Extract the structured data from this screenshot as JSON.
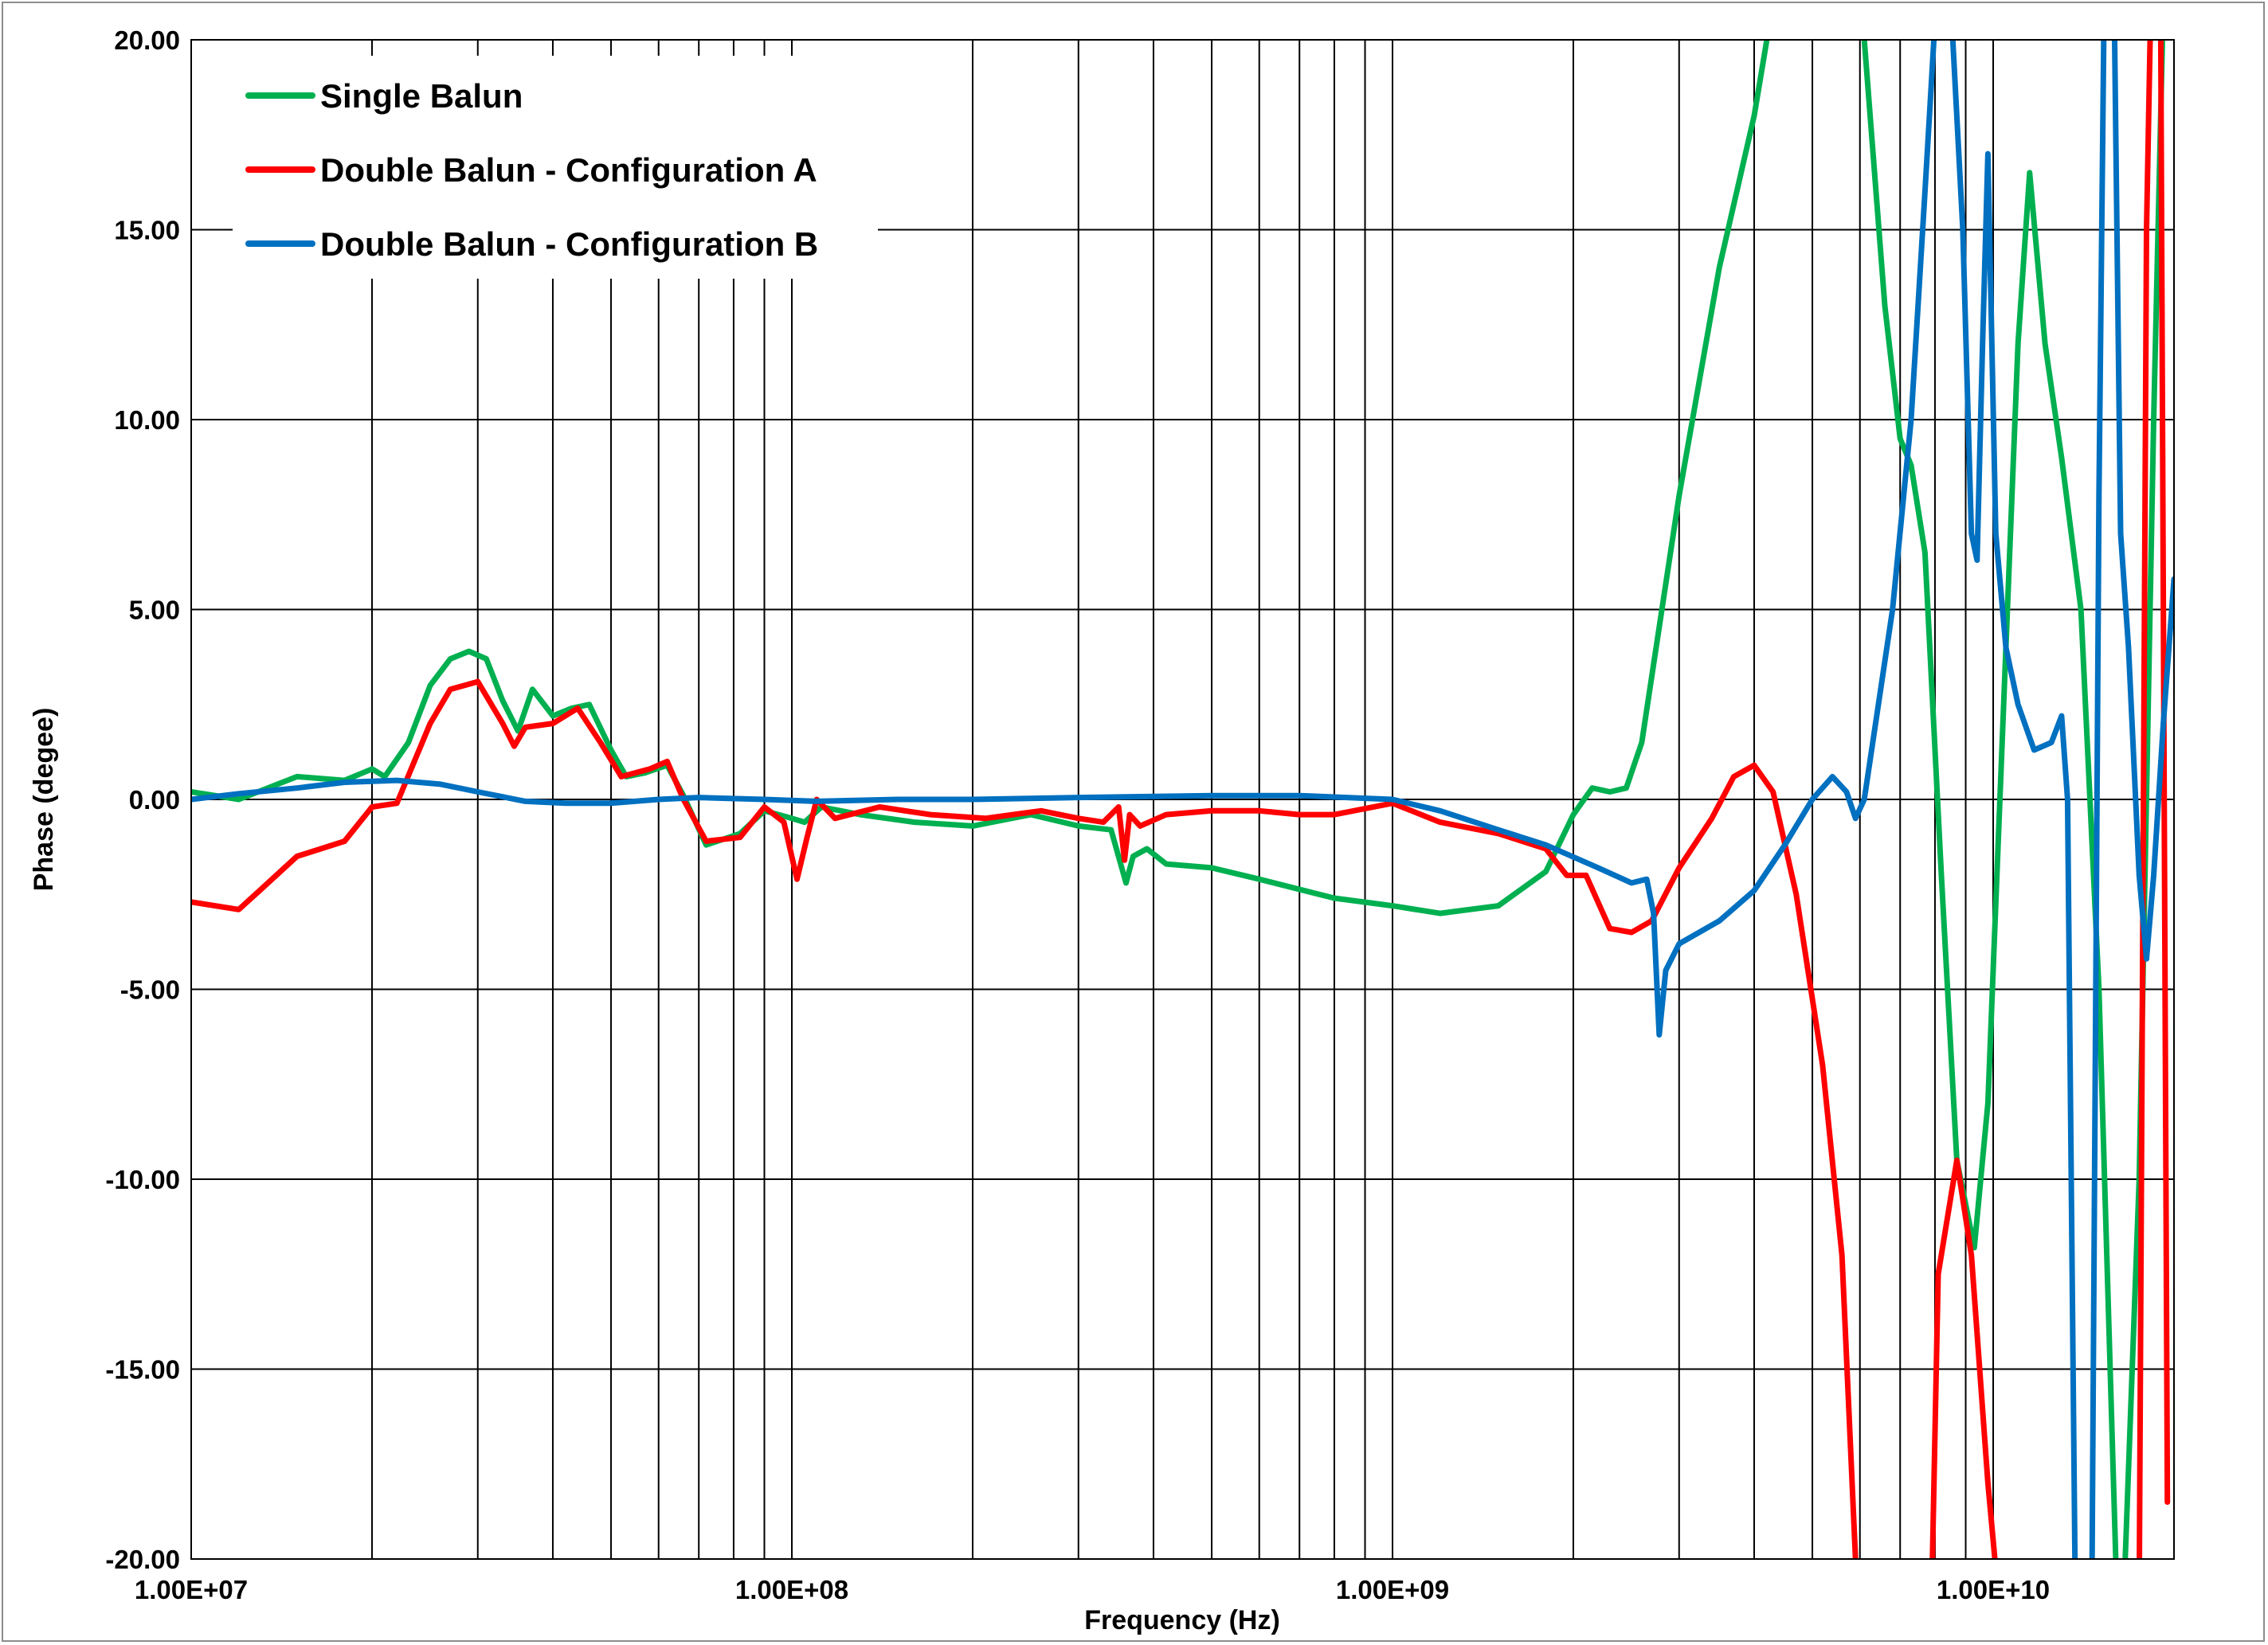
{
  "chart_data": {
    "type": "line",
    "title": "",
    "xlabel": "Frequency (Hz)",
    "ylabel": "Phase (degee)",
    "x_scale": "log",
    "xlim": [
      10000000,
      20000000000
    ],
    "ylim": [
      -20,
      20
    ],
    "x_tick_labels": [
      "1.00E+07",
      "1.00E+08",
      "1.00E+09",
      "1.00E+10"
    ],
    "x_tick_values": [
      10000000,
      100000000,
      1000000000,
      10000000000
    ],
    "y_tick_labels": [
      "20.00",
      "15.00",
      "10.00",
      "5.00",
      "0.00",
      "-5.00",
      "-10.00",
      "-15.00",
      "-20.00"
    ],
    "y_tick_values": [
      20,
      15,
      10,
      5,
      0,
      -5,
      -10,
      -15,
      -20
    ],
    "grid": true,
    "legend_position": "top-left",
    "series": [
      {
        "name": "Single Balun",
        "color": "#00b050",
        "points": [
          [
            10000000,
            0.2
          ],
          [
            12000000,
            0.0
          ],
          [
            15000000,
            0.6
          ],
          [
            18000000,
            0.5
          ],
          [
            20000000,
            0.8
          ],
          [
            21000000,
            0.6
          ],
          [
            23000000,
            1.5
          ],
          [
            25000000,
            3.0
          ],
          [
            27000000,
            3.7
          ],
          [
            29000000,
            3.9
          ],
          [
            31000000,
            3.7
          ],
          [
            33000000,
            2.6
          ],
          [
            35000000,
            1.8
          ],
          [
            37000000,
            2.9
          ],
          [
            40000000,
            2.2
          ],
          [
            43000000,
            2.4
          ],
          [
            46000000,
            2.5
          ],
          [
            50000000,
            1.3
          ],
          [
            53000000,
            0.6
          ],
          [
            57000000,
            0.7
          ],
          [
            62000000,
            0.9
          ],
          [
            66000000,
            0.1
          ],
          [
            72000000,
            -1.2
          ],
          [
            82000000,
            -0.9
          ],
          [
            90000000,
            -0.3
          ],
          [
            100000000,
            -0.5
          ],
          [
            105000000,
            -0.6
          ],
          [
            112000000,
            -0.2
          ],
          [
            130000000,
            -0.4
          ],
          [
            160000000,
            -0.6
          ],
          [
            200000000,
            -0.7
          ],
          [
            250000000,
            -0.4
          ],
          [
            300000000,
            -0.7
          ],
          [
            340000000,
            -0.8
          ],
          [
            360000000,
            -2.2
          ],
          [
            370000000,
            -1.5
          ],
          [
            390000000,
            -1.3
          ],
          [
            420000000,
            -1.7
          ],
          [
            500000000,
            -1.8
          ],
          [
            600000000,
            -2.1
          ],
          [
            800000000,
            -2.6
          ],
          [
            1000000000,
            -2.8
          ],
          [
            1200000000,
            -3.0
          ],
          [
            1500000000,
            -2.8
          ],
          [
            1800000000,
            -1.9
          ],
          [
            2000000000,
            -0.4
          ],
          [
            2150000000,
            0.3
          ],
          [
            2300000000,
            0.2
          ],
          [
            2450000000,
            0.3
          ],
          [
            2600000000,
            1.5
          ],
          [
            3000000000,
            8.0
          ],
          [
            3500000000,
            14.0
          ],
          [
            4000000000,
            18.0
          ],
          [
            4200000000,
            20.0
          ],
          [
            4300000000,
            21.5
          ],
          [
            6000000000,
            21.5
          ],
          [
            6100000000,
            20.0
          ],
          [
            6600000000,
            13.0
          ],
          [
            7000000000,
            9.5
          ],
          [
            7300000000,
            8.8
          ],
          [
            7700000000,
            6.5
          ],
          [
            8200000000,
            -2.0
          ],
          [
            8700000000,
            -9.5
          ],
          [
            9300000000,
            -11.8
          ],
          [
            9800000000,
            -8.0
          ],
          [
            10500000000,
            4.0
          ],
          [
            11000000000,
            12.0
          ],
          [
            11500000000,
            16.5
          ],
          [
            12200000000,
            12.0
          ],
          [
            13000000000,
            9.0
          ],
          [
            14000000000,
            5.0
          ],
          [
            15000000000,
            -5.0
          ],
          [
            16000000000,
            -20.0
          ],
          [
            16500000000,
            -21.0
          ],
          [
            17500000000,
            -10.0
          ],
          [
            18500000000,
            10.0
          ],
          [
            19200000000,
            21.0
          ]
        ]
      },
      {
        "name": "Double Balun - Configuration A",
        "color": "#ff0000",
        "points": [
          [
            10000000,
            -2.7
          ],
          [
            12000000,
            -2.9
          ],
          [
            13000000,
            -2.4
          ],
          [
            15000000,
            -1.5
          ],
          [
            18000000,
            -1.1
          ],
          [
            20000000,
            -0.2
          ],
          [
            22000000,
            -0.1
          ],
          [
            25000000,
            2.0
          ],
          [
            27000000,
            2.9
          ],
          [
            30000000,
            3.1
          ],
          [
            33000000,
            2.0
          ],
          [
            34500000,
            1.4
          ],
          [
            36000000,
            1.9
          ],
          [
            40000000,
            2.0
          ],
          [
            44000000,
            2.4
          ],
          [
            48000000,
            1.5
          ],
          [
            52000000,
            0.6
          ],
          [
            58000000,
            0.8
          ],
          [
            62000000,
            1.0
          ],
          [
            66000000,
            0.0
          ],
          [
            72000000,
            -1.1
          ],
          [
            82000000,
            -1.0
          ],
          [
            90000000,
            -0.2
          ],
          [
            97000000,
            -0.6
          ],
          [
            102000000,
            -2.1
          ],
          [
            106000000,
            -1.0
          ],
          [
            110000000,
            0.0
          ],
          [
            118000000,
            -0.5
          ],
          [
            140000000,
            -0.2
          ],
          [
            170000000,
            -0.4
          ],
          [
            210000000,
            -0.5
          ],
          [
            260000000,
            -0.3
          ],
          [
            300000000,
            -0.5
          ],
          [
            330000000,
            -0.6
          ],
          [
            350000000,
            -0.2
          ],
          [
            358000000,
            -1.6
          ],
          [
            365000000,
            -0.4
          ],
          [
            380000000,
            -0.7
          ],
          [
            420000000,
            -0.4
          ],
          [
            500000000,
            -0.3
          ],
          [
            600000000,
            -0.3
          ],
          [
            700000000,
            -0.4
          ],
          [
            800000000,
            -0.4
          ],
          [
            1000000000,
            -0.1
          ],
          [
            1200000000,
            -0.6
          ],
          [
            1500000000,
            -0.9
          ],
          [
            1800000000,
            -1.3
          ],
          [
            1950000000,
            -2.0
          ],
          [
            2100000000,
            -2.0
          ],
          [
            2300000000,
            -3.4
          ],
          [
            2500000000,
            -3.5
          ],
          [
            2700000000,
            -3.2
          ],
          [
            3000000000,
            -1.8
          ],
          [
            3400000000,
            -0.5
          ],
          [
            3700000000,
            0.6
          ],
          [
            4000000000,
            0.9
          ],
          [
            4300000000,
            0.2
          ],
          [
            4700000000,
            -2.5
          ],
          [
            5200000000,
            -7.0
          ],
          [
            5600000000,
            -12.0
          ],
          [
            5900000000,
            -20.0
          ],
          [
            6000000000,
            -21.0
          ],
          [
            7900000000,
            -21.0
          ],
          [
            8100000000,
            -12.5
          ],
          [
            8700000000,
            -9.5
          ],
          [
            9200000000,
            -12.0
          ],
          [
            9800000000,
            -18.0
          ],
          [
            10200000000,
            -21.0
          ],
          [
            17500000000,
            -21.0
          ],
          [
            18000000000,
            15.0
          ],
          [
            18300000000,
            21.0
          ],
          [
            19000000000,
            21.0
          ],
          [
            19500000000,
            -18.5
          ]
        ]
      },
      {
        "name": "Double Balun - Configuration B",
        "color": "#0070c0",
        "points": [
          [
            10000000,
            0.0
          ],
          [
            12000000,
            0.15
          ],
          [
            15000000,
            0.3
          ],
          [
            18000000,
            0.45
          ],
          [
            22000000,
            0.5
          ],
          [
            26000000,
            0.4
          ],
          [
            30000000,
            0.2
          ],
          [
            36000000,
            -0.05
          ],
          [
            42000000,
            -0.1
          ],
          [
            50000000,
            -0.1
          ],
          [
            60000000,
            0.0
          ],
          [
            70000000,
            0.05
          ],
          [
            90000000,
            0.0
          ],
          [
            110000000,
            -0.05
          ],
          [
            150000000,
            0.0
          ],
          [
            200000000,
            0.0
          ],
          [
            300000000,
            0.05
          ],
          [
            500000000,
            0.1
          ],
          [
            700000000,
            0.1
          ],
          [
            1000000000,
            0.0
          ],
          [
            1200000000,
            -0.3
          ],
          [
            1500000000,
            -0.8
          ],
          [
            1800000000,
            -1.2
          ],
          [
            2200000000,
            -1.8
          ],
          [
            2500000000,
            -2.2
          ],
          [
            2650000000,
            -2.1
          ],
          [
            2720000000,
            -3.0
          ],
          [
            2780000000,
            -6.2
          ],
          [
            2850000000,
            -4.5
          ],
          [
            3000000000,
            -3.8
          ],
          [
            3500000000,
            -3.2
          ],
          [
            4000000000,
            -2.4
          ],
          [
            4500000000,
            -1.2
          ],
          [
            5000000000,
            0.0
          ],
          [
            5400000000,
            0.6
          ],
          [
            5700000000,
            0.2
          ],
          [
            5900000000,
            -0.5
          ],
          [
            6100000000,
            0.0
          ],
          [
            6800000000,
            5.0
          ],
          [
            7300000000,
            10.0
          ],
          [
            7700000000,
            16.0
          ],
          [
            8000000000,
            20.5
          ],
          [
            8500000000,
            21.0
          ],
          [
            8900000000,
            15.0
          ],
          [
            9200000000,
            7.0
          ],
          [
            9400000000,
            6.3
          ],
          [
            9600000000,
            12.0
          ],
          [
            9800000000,
            17.0
          ],
          [
            10100000000,
            7.0
          ],
          [
            10500000000,
            4.0
          ],
          [
            11000000000,
            2.5
          ],
          [
            11700000000,
            1.3
          ],
          [
            12500000000,
            1.5
          ],
          [
            13000000000,
            2.2
          ],
          [
            13300000000,
            0.0
          ],
          [
            13700000000,
            -21.0
          ],
          [
            14600000000,
            -21.0
          ],
          [
            15000000000,
            8.0
          ],
          [
            15300000000,
            21.0
          ],
          [
            15900000000,
            21.0
          ],
          [
            16300000000,
            7.0
          ],
          [
            16800000000,
            4.0
          ],
          [
            17500000000,
            -2.0
          ],
          [
            18000000000,
            -4.2
          ],
          [
            18500000000,
            -2.0
          ],
          [
            19200000000,
            2.0
          ],
          [
            20000000000,
            5.8
          ]
        ]
      }
    ]
  }
}
